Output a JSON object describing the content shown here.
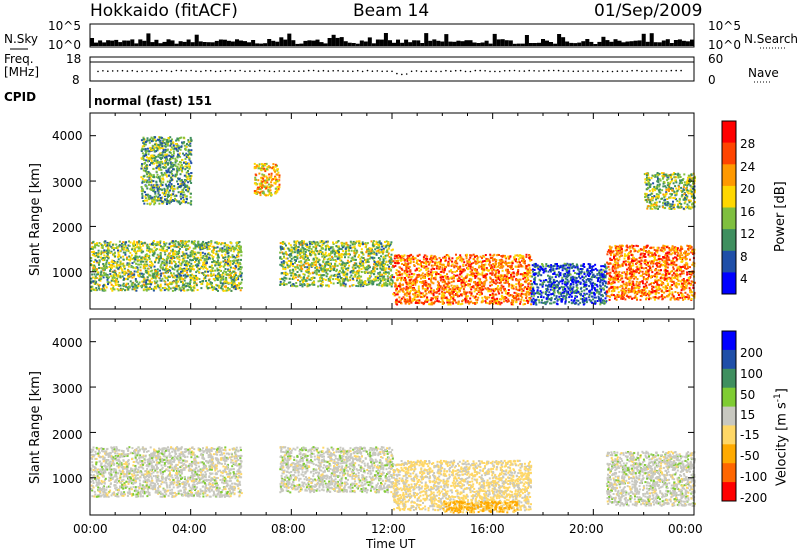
{
  "header": {
    "radar": "Hokkaido (fitACF)",
    "beam": "Beam 14",
    "date": "01/Sep/2009"
  },
  "noise_panel": {
    "left_label": "N.Sky",
    "right_label": "N.Search",
    "ticks_left": [
      "10^5",
      "10^0"
    ],
    "ticks_right": [
      "10^5",
      "10^0"
    ]
  },
  "freq_panel": {
    "left_label_line1": "Freq.",
    "left_label_line2": "[MHz]",
    "right_label": "Nave",
    "ticks_left": [
      "18",
      "8"
    ],
    "ticks_right": [
      "60",
      "0"
    ]
  },
  "cpid": {
    "label": "CPID",
    "value": "normal (fast) 151"
  },
  "power_panel": {
    "ylabel": "Slant Range [km]",
    "yticks": [
      "4000",
      "3000",
      "2000",
      "1000"
    ],
    "colorbar_label": "Power [dB]",
    "colorbar_ticks": [
      "28",
      "24",
      "20",
      "16",
      "12",
      "8",
      "4"
    ],
    "colors": [
      "#0000ff",
      "#1f4fa8",
      "#3f8f5f",
      "#7fbf3f",
      "#ffd700",
      "#ff9900",
      "#ff4400",
      "#ff0000"
    ]
  },
  "velocity_panel": {
    "ylabel": "Slant Range [km]",
    "yticks": [
      "4000",
      "3000",
      "2000",
      "1000"
    ],
    "colorbar_label": "Velocity [m s",
    "colorbar_label_sup": "-1",
    "colorbar_label_end": "]",
    "colorbar_ticks": [
      "200",
      "100",
      "50",
      "15",
      "-15",
      "-50",
      "-100",
      "-200"
    ],
    "colors": [
      "#ff0000",
      "#ff6600",
      "#ffaa00",
      "#ffd766",
      "#c8c8c0",
      "#7fcc33",
      "#3f8f5f",
      "#1f4fa8",
      "#0000ff"
    ]
  },
  "xaxis": {
    "label": "Time UT",
    "ticks": [
      "00:00",
      "04:00",
      "08:00",
      "12:00",
      "16:00",
      "20:00",
      "00:00"
    ]
  },
  "chart_data": {
    "type": "heatmap",
    "title": "Hokkaido (fitACF) Beam 14 01/Sep/2009",
    "xlabel": "Time UT",
    "ylabel": "Slant Range [km]",
    "xlim": [
      "00:00",
      "24:00"
    ],
    "ylim": [
      180,
      4500
    ],
    "power_scale_db": [
      0,
      32
    ],
    "velocity_scale_ms": [
      -250,
      250
    ],
    "power_regions": [
      {
        "t": [
          0.0,
          6.0
        ],
        "r": [
          600,
          1700
        ],
        "db": 14
      },
      {
        "t": [
          2.0,
          4.0
        ],
        "r": [
          2500,
          4000
        ],
        "db": 12
      },
      {
        "t": [
          6.5,
          7.5
        ],
        "r": [
          2700,
          3400
        ],
        "db": 20
      },
      {
        "t": [
          7.5,
          12.0
        ],
        "r": [
          700,
          1700
        ],
        "db": 14
      },
      {
        "t": [
          12.0,
          17.5
        ],
        "r": [
          300,
          1400
        ],
        "db": 24
      },
      {
        "t": [
          17.5,
          20.5
        ],
        "r": [
          300,
          1200
        ],
        "db": 6
      },
      {
        "t": [
          20.5,
          24.0
        ],
        "r": [
          400,
          1600
        ],
        "db": 24
      },
      {
        "t": [
          22.0,
          24.0
        ],
        "r": [
          2400,
          3200
        ],
        "db": 14
      }
    ],
    "velocity_regions": [
      {
        "t": [
          0.0,
          6.0
        ],
        "r": [
          600,
          1700
        ],
        "v": 0
      },
      {
        "t": [
          7.5,
          12.0
        ],
        "r": [
          700,
          1700
        ],
        "v": 0
      },
      {
        "t": [
          12.0,
          17.5
        ],
        "r": [
          300,
          1400
        ],
        "v": -20
      },
      {
        "t": [
          14.0,
          17.0
        ],
        "r": [
          250,
          500
        ],
        "v": -60
      },
      {
        "t": [
          20.5,
          24.0
        ],
        "r": [
          400,
          1600
        ],
        "v": 0
      }
    ]
  }
}
